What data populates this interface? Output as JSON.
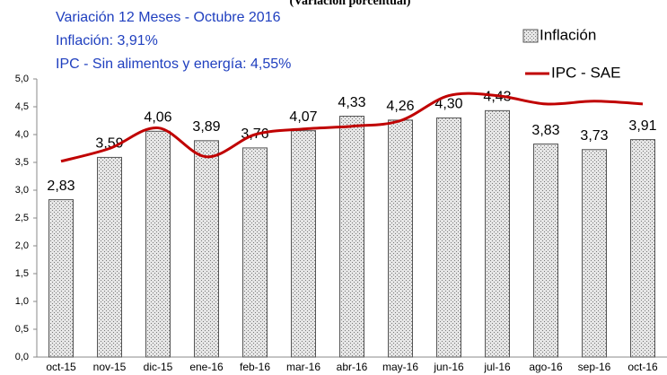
{
  "chart_data": {
    "type": "bar",
    "subtitle": "(Variación porcentual)",
    "annotations": [
      "Variación 12 Meses - Octubre 2016",
      "Inflación: 3,91%",
      "IPC - Sin alimentos y energía: 4,55%"
    ],
    "categories": [
      "oct-15",
      "nov-15",
      "dic-15",
      "ene-16",
      "feb-16",
      "mar-16",
      "abr-16",
      "may-16",
      "jun-16",
      "jul-16",
      "ago-16",
      "sep-16",
      "oct-16"
    ],
    "series": [
      {
        "name": "Inflación",
        "type": "bar",
        "color": "#e6e6e6",
        "values": [
          2.83,
          3.59,
          4.06,
          3.89,
          3.76,
          4.07,
          4.33,
          4.26,
          4.3,
          4.43,
          3.83,
          3.73,
          3.91
        ],
        "value_labels": [
          "2,83",
          "3,59",
          "4,06",
          "3,89",
          "3,76",
          "4,07",
          "4,33",
          "4,26",
          "4,30",
          "4,43",
          "3,83",
          "3,73",
          "3,91"
        ]
      },
      {
        "name": "IPC - SAE",
        "type": "line",
        "color": "#c00000",
        "values": [
          3.52,
          3.75,
          4.12,
          3.6,
          4.0,
          4.1,
          4.15,
          4.25,
          4.7,
          4.7,
          4.55,
          4.6,
          4.55
        ]
      }
    ],
    "ylim": [
      0,
      5
    ],
    "yticks": [
      {
        "value": 0,
        "label": "0,0"
      },
      {
        "value": 0.5,
        "label": "0,5"
      },
      {
        "value": 1,
        "label": "1,0"
      },
      {
        "value": 1.5,
        "label": "1,5"
      },
      {
        "value": 2,
        "label": "2,0"
      },
      {
        "value": 2.5,
        "label": "2,5"
      },
      {
        "value": 3,
        "label": "3,0"
      },
      {
        "value": 3.5,
        "label": "3,5"
      },
      {
        "value": 4,
        "label": "4,0"
      },
      {
        "value": 4.5,
        "label": "4,5"
      },
      {
        "value": 5,
        "label": "5,0"
      }
    ],
    "grid": false
  }
}
